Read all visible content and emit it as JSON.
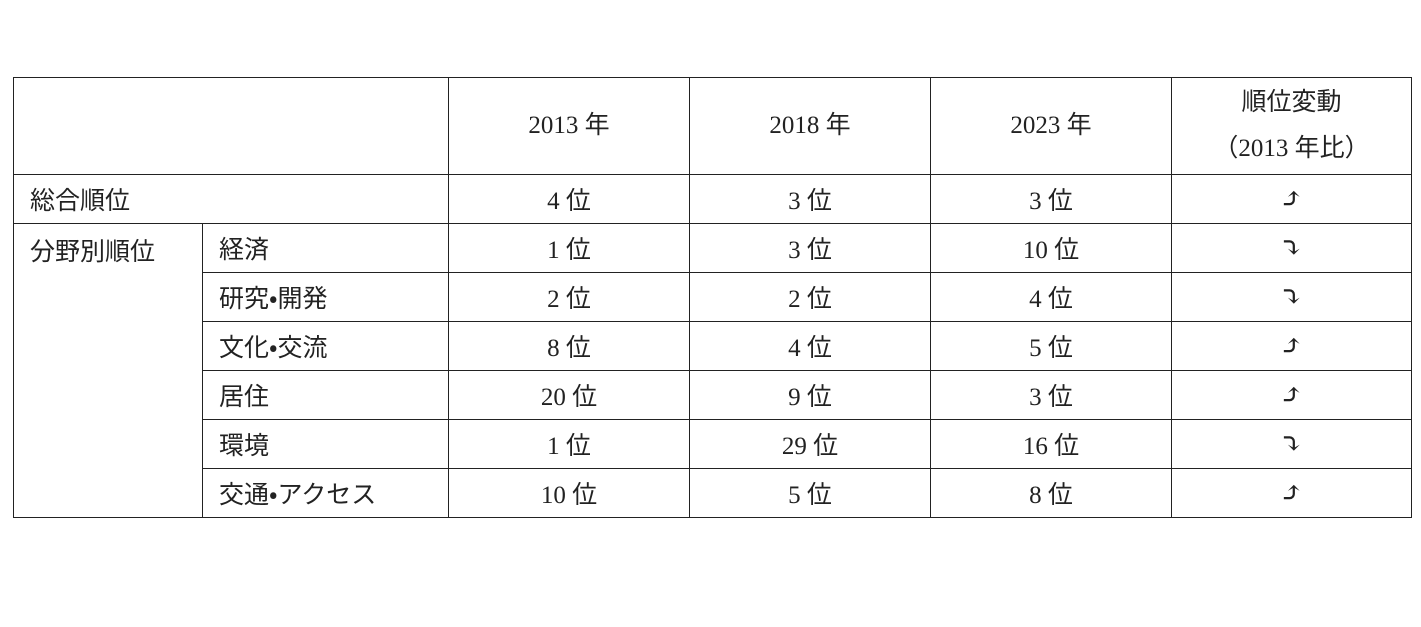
{
  "table": {
    "header": {
      "years": [
        "2013 年",
        "2018 年",
        "2023 年"
      ],
      "change": [
        "順位変動",
        "（2013 年比）"
      ]
    },
    "overall": {
      "label": "総合順位",
      "values": [
        "4 位",
        "3 位",
        "3 位"
      ],
      "change": "⤴"
    },
    "by_field": {
      "label": "分野別順位",
      "rows": [
        {
          "label": "経済",
          "values": [
            "1 位",
            "3 位",
            "10 位"
          ],
          "change": "⤵"
        },
        {
          "label": "研究・開発",
          "values": [
            "2 位",
            "2 位",
            "4 位"
          ],
          "change": "⤵"
        },
        {
          "label": "文化・交流",
          "values": [
            "8 位",
            "4 位",
            "5 位"
          ],
          "change": "⤴"
        },
        {
          "label": "居住",
          "values": [
            "20 位",
            "9 位",
            "3 位"
          ],
          "change": "⤴"
        },
        {
          "label": "環境",
          "values": [
            "1 位",
            "29 位",
            "16 位"
          ],
          "change": "⤵"
        },
        {
          "label": "交通・アクセス",
          "values": [
            "10 位",
            "5 位",
            "8 位"
          ],
          "change": "⤴"
        }
      ]
    }
  }
}
